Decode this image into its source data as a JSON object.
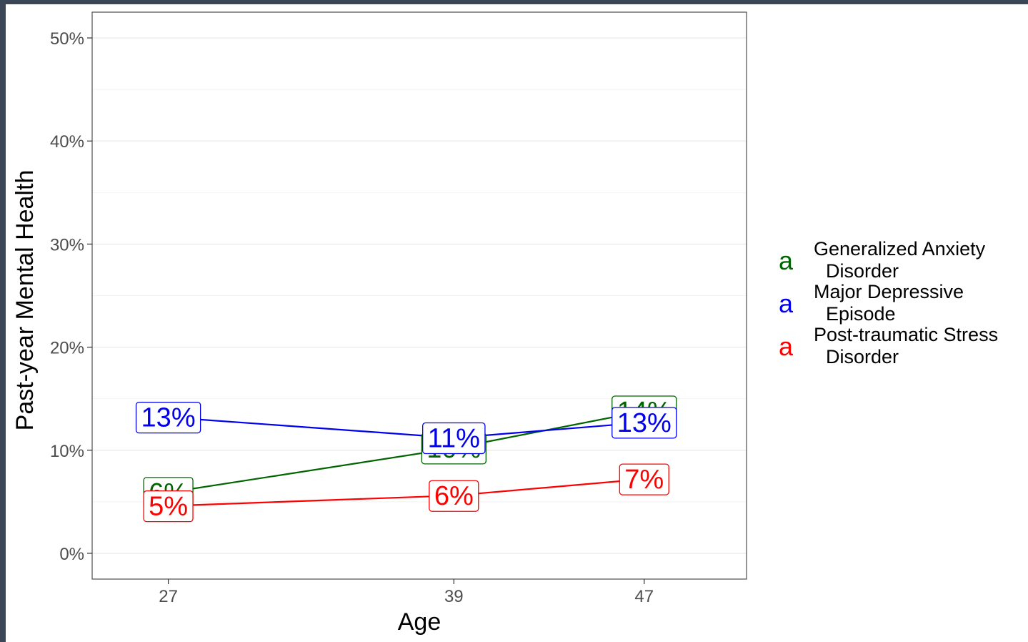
{
  "chart_data": {
    "type": "line",
    "xlabel": "Age",
    "ylabel": "Past-year Mental Health",
    "categories": [
      "27",
      "39",
      "47"
    ],
    "x": [
      27,
      39,
      47
    ],
    "xlim": [
      23.8,
      51.3
    ],
    "ylim": [
      -2.5,
      52.5
    ],
    "yticks": [
      0,
      10,
      20,
      30,
      40,
      50
    ],
    "ytick_labels": [
      "0%",
      "10%",
      "20%",
      "30%",
      "40%",
      "50%"
    ],
    "grid": true,
    "legend_position": "right",
    "legend_key_glyph": "a",
    "series": [
      {
        "name": "Generalized Anxiety Disorder",
        "legend_lines": [
          "Generalized Anxiety",
          "Disorder"
        ],
        "color": "#006400",
        "values": [
          5.9,
          10.2,
          13.8
        ],
        "labels": [
          "6%",
          "10%",
          "14%"
        ]
      },
      {
        "name": "Major Depressive Episode",
        "legend_lines": [
          "Major Depressive",
          "Episode"
        ],
        "color": "#0000ee",
        "values": [
          13.2,
          11.2,
          12.7
        ],
        "labels": [
          "13%",
          "11%",
          "13%"
        ]
      },
      {
        "name": "Post-traumatic Stress Disorder",
        "legend_lines": [
          "Post-traumatic Stress",
          "Disorder"
        ],
        "color": "#ff0000",
        "values": [
          4.6,
          5.6,
          7.2
        ],
        "labels": [
          "5%",
          "6%",
          "7%"
        ]
      }
    ]
  }
}
